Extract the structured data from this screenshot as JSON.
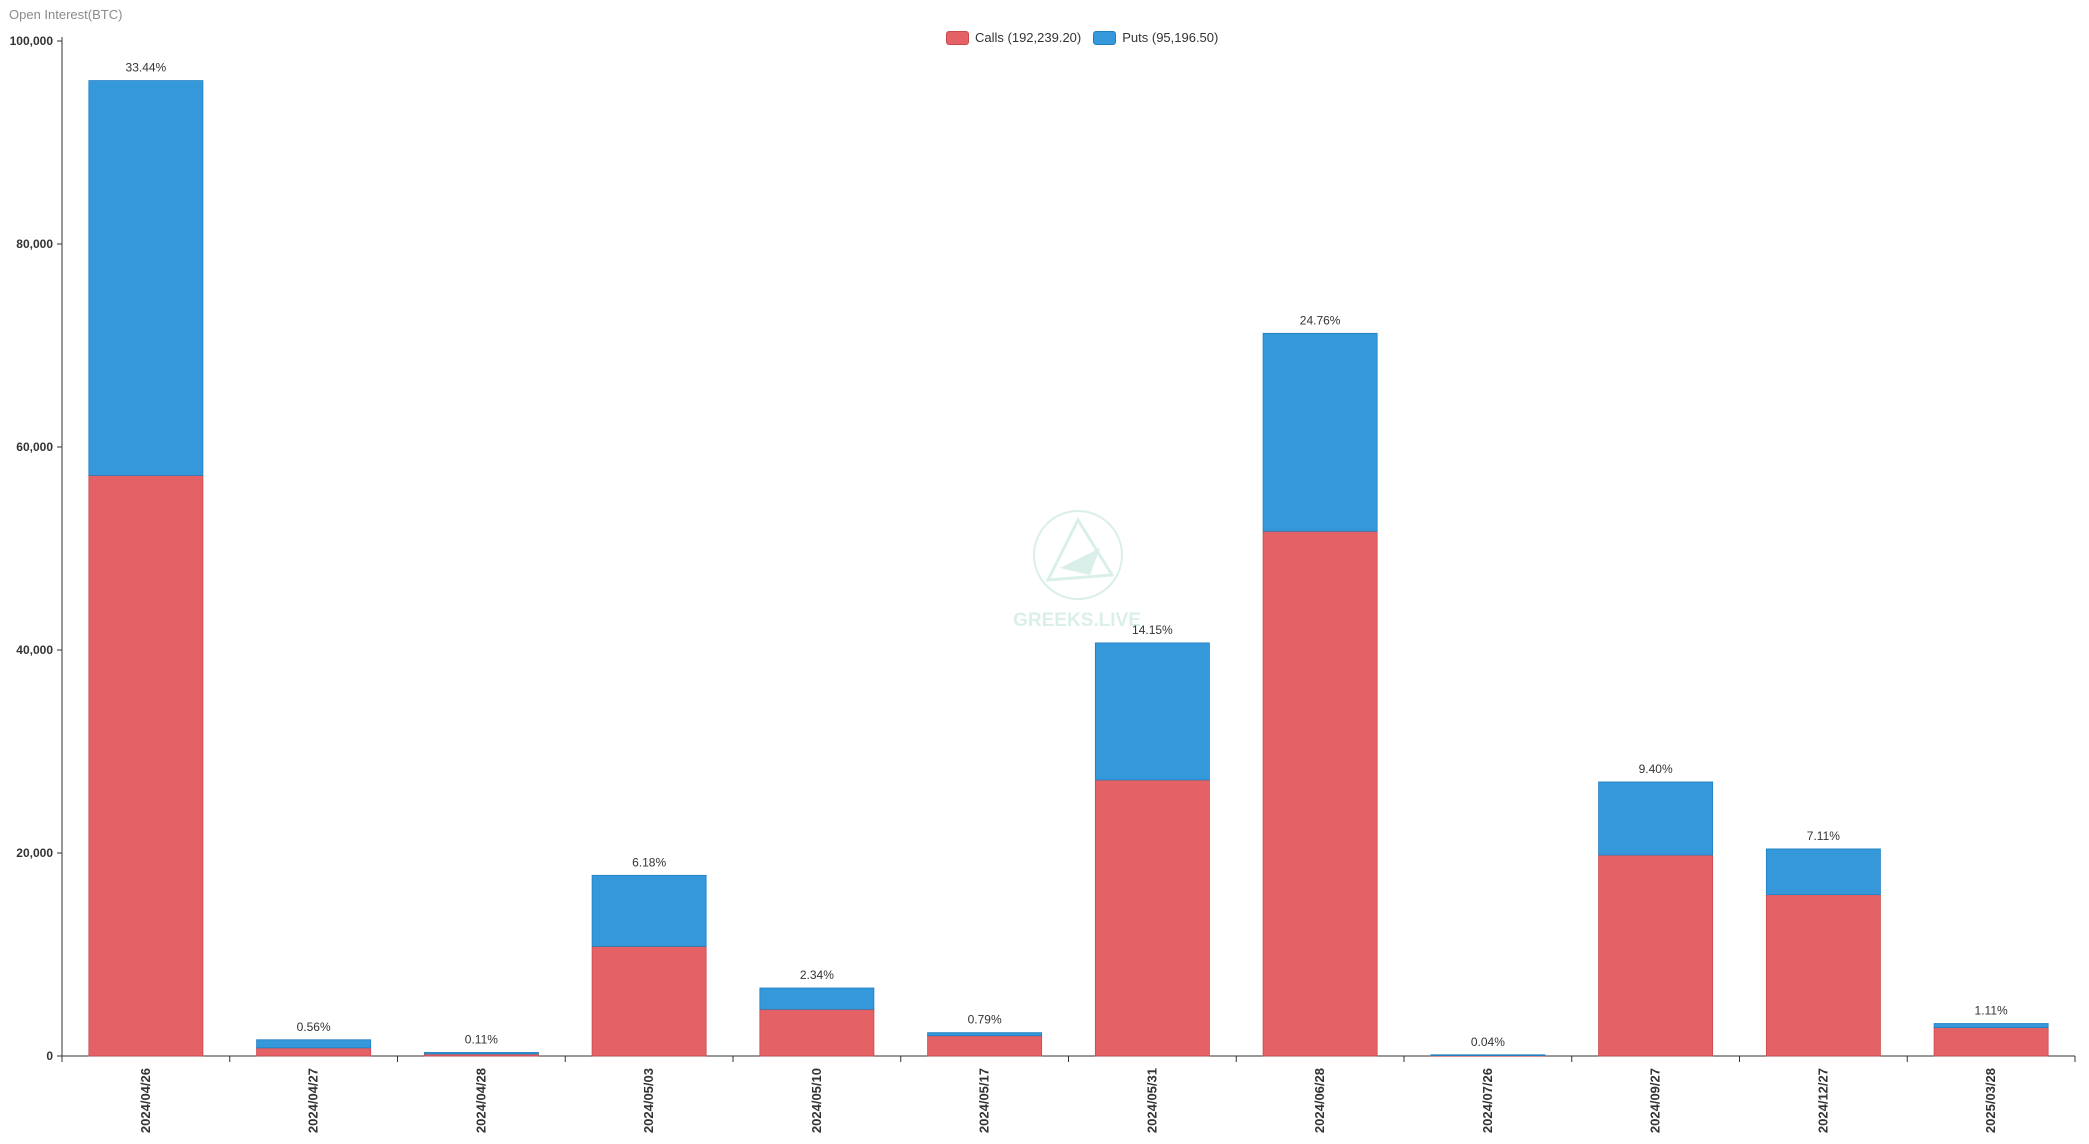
{
  "chart_data": {
    "type": "bar",
    "stacked": true,
    "ylabel": "Open Interest(BTC)",
    "ylim": [
      0,
      100000
    ],
    "yticks": [
      0,
      20000,
      40000,
      60000,
      80000,
      100000
    ],
    "ytick_labels": [
      "0",
      "20,000",
      "40,000",
      "60,000",
      "80,000",
      "100,000"
    ],
    "grid": false,
    "legend_position": "top-center",
    "watermark": "GREEKS.LIVE",
    "categories": [
      "2024/04/26",
      "2024/04/27",
      "2024/04/28",
      "2024/05/03",
      "2024/05/10",
      "2024/05/17",
      "2024/05/31",
      "2024/06/28",
      "2024/07/26",
      "2024/09/27",
      "2024/12/27",
      "2025/03/28"
    ],
    "series": [
      {
        "name": "Calls",
        "legend_label": "Calls (192,239.20)",
        "color": "#e46166",
        "values": [
          57200,
          800,
          200,
          10800,
          4600,
          2000,
          27200,
          51700,
          60,
          19800,
          15900,
          2800
        ]
      },
      {
        "name": "Puts",
        "legend_label": "Puts (95,196.50)",
        "color": "#3498db",
        "values": [
          38900,
          800,
          150,
          7000,
          2100,
          300,
          13500,
          19500,
          60,
          7200,
          4500,
          400
        ]
      }
    ],
    "data_labels": [
      "33.44%",
      "0.56%",
      "0.11%",
      "6.18%",
      "2.34%",
      "0.79%",
      "14.15%",
      "24.76%",
      "0.04%",
      "9.40%",
      "7.11%",
      "1.11%"
    ]
  }
}
